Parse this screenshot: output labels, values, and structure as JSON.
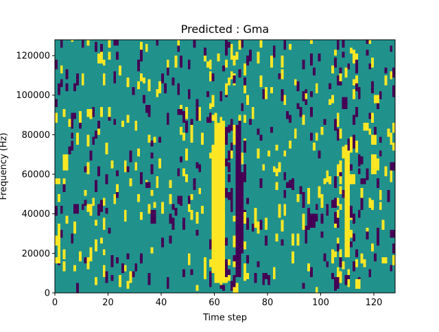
{
  "chart_data": {
    "type": "heatmap",
    "title": "Predicted : Gma",
    "xlabel": "Time step",
    "ylabel": "Frequency (Hz)",
    "xlim": [
      0,
      128
    ],
    "ylim": [
      0,
      128000
    ],
    "x_ticks": [
      0,
      20,
      40,
      60,
      80,
      100,
      120
    ],
    "y_ticks": [
      0,
      20000,
      40000,
      60000,
      80000,
      100000,
      120000
    ],
    "colors": {
      "background": "#21918c",
      "high": "#fde725",
      "low": "#440154"
    },
    "value_levels": {
      "low": -1,
      "background": 0,
      "high": 1
    },
    "cols": 128,
    "rows": 128,
    "cell_height_hz": 1000,
    "band_segments": [
      {
        "t0": 60,
        "t1": 64,
        "f0": 5000,
        "f1": 86000,
        "value": 1
      },
      {
        "t0": 59,
        "t1": 60,
        "f0": 10000,
        "f1": 75000,
        "value": 1
      },
      {
        "t0": 68,
        "t1": 70,
        "f0": 8000,
        "f1": 85000,
        "value": -1
      },
      {
        "t0": 70,
        "t1": 71,
        "f0": 20000,
        "f1": 55000,
        "value": -1
      },
      {
        "t0": 109,
        "t1": 111,
        "f0": 18000,
        "f1": 72000,
        "value": 1
      },
      {
        "t0": 111,
        "t1": 113,
        "f0": 55000,
        "f1": 60000,
        "value": 1
      },
      {
        "t0": 1,
        "t1": 2,
        "f0": 18000,
        "f1": 35000,
        "value": 1
      },
      {
        "t0": 3,
        "t1": 5,
        "f0": 62000,
        "f1": 70000,
        "value": 1
      },
      {
        "t0": 0,
        "t1": 2,
        "f0": 55000,
        "f1": 58000,
        "value": 1
      },
      {
        "t0": 0,
        "t1": 2,
        "f0": 15000,
        "f1": 18000,
        "value": 1
      },
      {
        "t0": 36,
        "t1": 38,
        "f0": 35000,
        "f1": 42000,
        "value": -1
      },
      {
        "t0": 34,
        "t1": 36,
        "f0": 53000,
        "f1": 56000,
        "value": -1
      },
      {
        "t0": 46,
        "t1": 48,
        "f0": 90000,
        "f1": 93000,
        "value": -1
      },
      {
        "t0": 96,
        "t1": 98,
        "f0": 33000,
        "f1": 40000,
        "value": -1
      },
      {
        "t0": 104,
        "t1": 106,
        "f0": 43000,
        "f1": 47000,
        "value": -1
      },
      {
        "t0": 115,
        "t1": 117,
        "f0": 55000,
        "f1": 58000,
        "value": -1
      },
      {
        "t0": 119,
        "t1": 121,
        "f0": 60000,
        "f1": 70000,
        "value": 1
      },
      {
        "t0": 119,
        "t1": 121,
        "f0": 75000,
        "f1": 80000,
        "value": 1
      },
      {
        "t0": 120,
        "t1": 122,
        "f0": 96000,
        "f1": 100000,
        "value": 1
      },
      {
        "t0": 126,
        "t1": 128,
        "f0": 62000,
        "f1": 66000,
        "value": -1
      },
      {
        "t0": 126,
        "t1": 128,
        "f0": 28000,
        "f1": 32000,
        "value": -1
      },
      {
        "t0": 7,
        "t1": 9,
        "f0": 40000,
        "f1": 45000,
        "value": -1
      },
      {
        "t0": 12,
        "t1": 14,
        "f0": 41000,
        "f1": 45000,
        "value": 1
      },
      {
        "t0": 18,
        "t1": 19,
        "f0": 8000,
        "f1": 14000,
        "value": 1
      },
      {
        "t0": 84,
        "t1": 85,
        "f0": 38000,
        "f1": 45000,
        "value": 1
      },
      {
        "t0": 93,
        "t1": 94,
        "f0": 32000,
        "f1": 40000,
        "value": 1
      }
    ]
  }
}
